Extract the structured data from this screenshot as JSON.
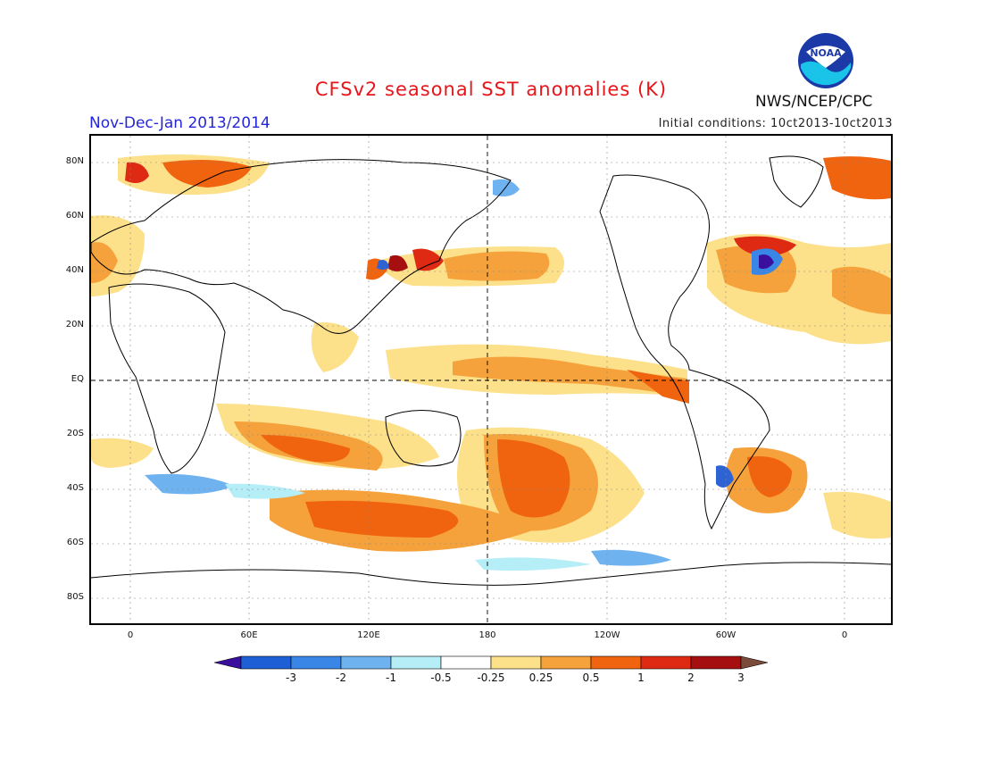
{
  "title": "CFSv2 seasonal SST anomalies (K)",
  "period": "Nov-Dec-Jan 2013/2014",
  "initial_conditions": "Initial conditions: 10ct2013-10ct2013",
  "agency": "NWS/NCEP/CPC",
  "logo_text": "NOAA",
  "axes": {
    "lat_labels": [
      "80N",
      "60N",
      "40N",
      "20N",
      "EQ",
      "20S",
      "40S",
      "60S",
      "80S"
    ],
    "lon_labels": [
      "0",
      "60E",
      "120E",
      "180",
      "120W",
      "60W",
      "0"
    ]
  },
  "colorbar": {
    "labels": [
      "-3",
      "-2",
      "-1",
      "-0.5",
      "-0.25",
      "0.25",
      "0.5",
      "1",
      "2",
      "3"
    ],
    "colors": [
      "#3a0f9e",
      "#1f5fd6",
      "#3a86e6",
      "#6fb2f0",
      "#b6eef8",
      "#ffffff",
      "#fde08a",
      "#f6a23c",
      "#f1640f",
      "#de2a12",
      "#a60f0f",
      "#7a4a3a"
    ]
  },
  "colors": {
    "cold_strong": "#3a0f9e",
    "cold": "#3a86e6",
    "cool": "#b6eef8",
    "warm_light": "#fde08a",
    "warm": "#f1640f",
    "hot": "#de2a12",
    "very_hot": "#a60f0f"
  }
}
